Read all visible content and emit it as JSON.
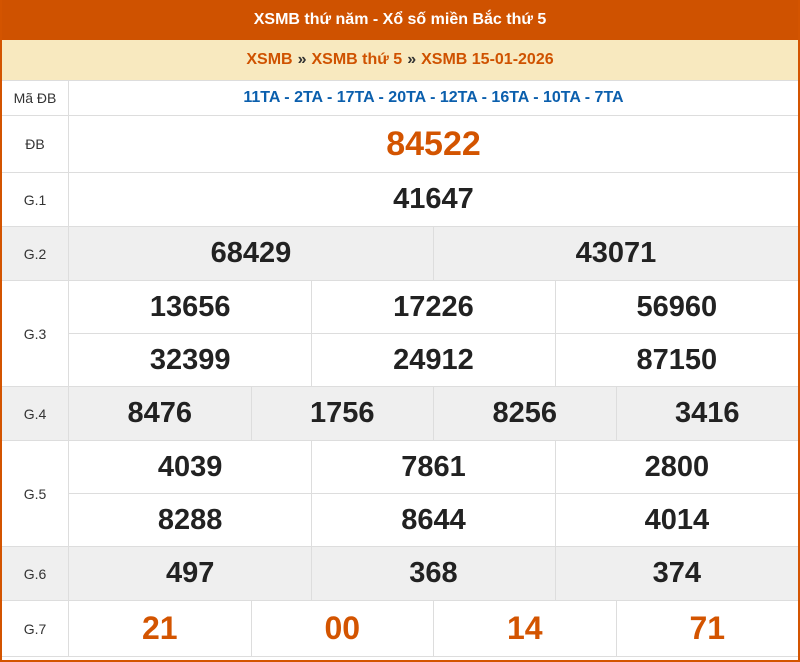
{
  "title": "XSMB thứ năm - Xổ số miền Bắc thứ 5",
  "breadcrumb": [
    "XSMB",
    "XSMB thứ 5",
    "XSMB 15-01-2026"
  ],
  "breadcrumb_sep": "»",
  "ma_db": {
    "label": "Mã ĐB",
    "value": "11TA - 2TA - 17TA - 20TA - 12TA - 16TA - 10TA - 7TA"
  },
  "prizes": [
    {
      "label": "ĐB",
      "rows": [
        [
          "84522"
        ]
      ]
    },
    {
      "label": "G.1",
      "rows": [
        [
          "41647"
        ]
      ]
    },
    {
      "label": "G.2",
      "rows": [
        [
          "68429",
          "43071"
        ]
      ]
    },
    {
      "label": "G.3",
      "rows": [
        [
          "13656",
          "17226",
          "56960"
        ],
        [
          "32399",
          "24912",
          "87150"
        ]
      ]
    },
    {
      "label": "G.4",
      "rows": [
        [
          "8476",
          "1756",
          "8256",
          "3416"
        ]
      ]
    },
    {
      "label": "G.5",
      "rows": [
        [
          "4039",
          "7861",
          "2800"
        ],
        [
          "8288",
          "8644",
          "4014"
        ]
      ]
    },
    {
      "label": "G.6",
      "rows": [
        [
          "497",
          "368",
          "374"
        ]
      ]
    },
    {
      "label": "G.7",
      "rows": [
        [
          "21",
          "00",
          "14",
          "71"
        ]
      ]
    }
  ],
  "colors": {
    "header": "#cf5200",
    "breadcrumb_bg": "#f8e9bf",
    "accent": "#d35400",
    "code": "#0b5fad"
  }
}
